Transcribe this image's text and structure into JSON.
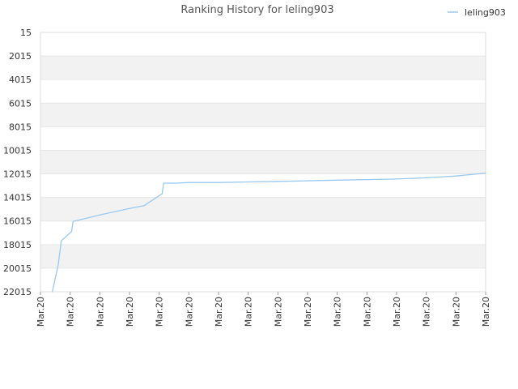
{
  "chart_data": {
    "type": "line",
    "title": "Ranking History for leling903",
    "xlabel": "",
    "ylabel": "",
    "y_reversed": true,
    "ylim": [
      15,
      22015
    ],
    "y_ticks": [
      15,
      2015,
      4015,
      6015,
      8015,
      10015,
      12015,
      14015,
      16015,
      18015,
      20015,
      22015
    ],
    "x_ticks": [
      "Mar.20",
      "Mar.20",
      "Mar.20",
      "Mar.20",
      "Mar.20",
      "Mar.20",
      "Mar.20",
      "Mar.20",
      "Mar.20",
      "Mar.20",
      "Mar.20",
      "Mar.20",
      "Mar.20",
      "Mar.20",
      "Mar.20",
      "Mar.20"
    ],
    "legend_position": "top-right",
    "grid": "horizontal alternating bands",
    "band_color": "#f2f2f2",
    "series": [
      {
        "name": "leling903",
        "color": "#99c9f0",
        "points": [
          {
            "x": 0.4,
            "y": 22015
          },
          {
            "x": 0.6,
            "y": 19700
          },
          {
            "x": 0.7,
            "y": 17700
          },
          {
            "x": 1.05,
            "y": 16900
          },
          {
            "x": 1.1,
            "y": 16050
          },
          {
            "x": 2.0,
            "y": 15500
          },
          {
            "x": 3.0,
            "y": 14950
          },
          {
            "x": 3.5,
            "y": 14700
          },
          {
            "x": 4.1,
            "y": 13700
          },
          {
            "x": 4.15,
            "y": 12800
          },
          {
            "x": 4.6,
            "y": 12800
          },
          {
            "x": 5.0,
            "y": 12750
          },
          {
            "x": 6.0,
            "y": 12750
          },
          {
            "x": 7.0,
            "y": 12700
          },
          {
            "x": 8.0,
            "y": 12650
          },
          {
            "x": 9.0,
            "y": 12600
          },
          {
            "x": 10.0,
            "y": 12550
          },
          {
            "x": 11.0,
            "y": 12500
          },
          {
            "x": 12.0,
            "y": 12450
          },
          {
            "x": 13.0,
            "y": 12350
          },
          {
            "x": 14.0,
            "y": 12200
          },
          {
            "x": 15.0,
            "y": 11950
          }
        ]
      }
    ]
  }
}
